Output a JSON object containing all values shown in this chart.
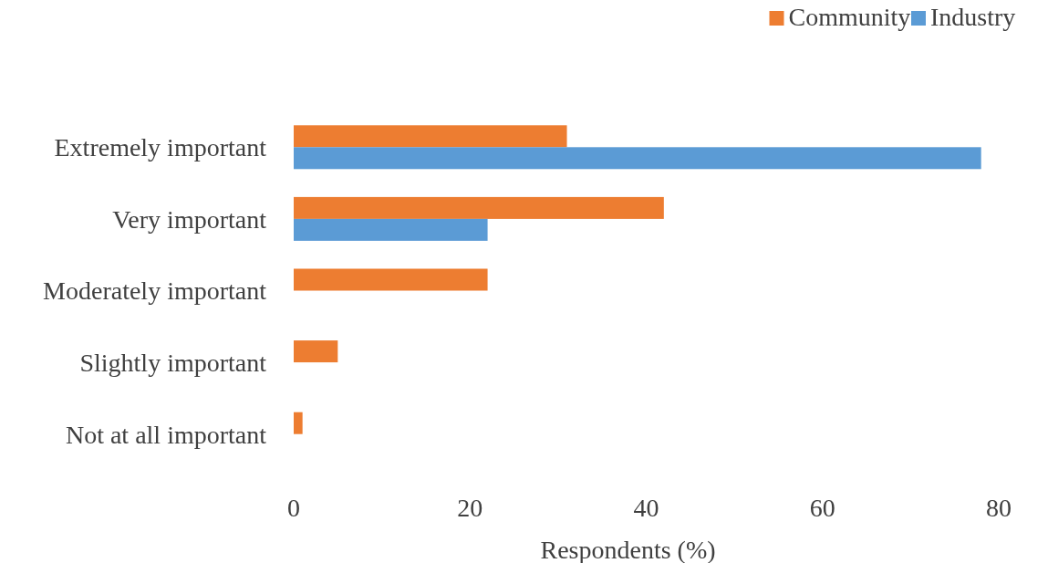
{
  "chart_data": {
    "type": "bar",
    "orientation": "horizontal",
    "xlabel": "Respondents (%)",
    "categories": [
      "Extremely important",
      "Very important",
      "Moderately important",
      "Slightly important",
      "Not at all important"
    ],
    "series": [
      {
        "name": "Community",
        "color": "#ed7d31",
        "values": [
          31,
          42,
          22,
          5,
          1
        ]
      },
      {
        "name": "Industry",
        "color": "#5b9bd5",
        "values": [
          78,
          22,
          0,
          0,
          0
        ]
      }
    ],
    "xlim": [
      0,
      80
    ],
    "xticks": [
      0,
      20,
      40,
      60,
      80
    ],
    "grid": false,
    "legend": "top right"
  }
}
